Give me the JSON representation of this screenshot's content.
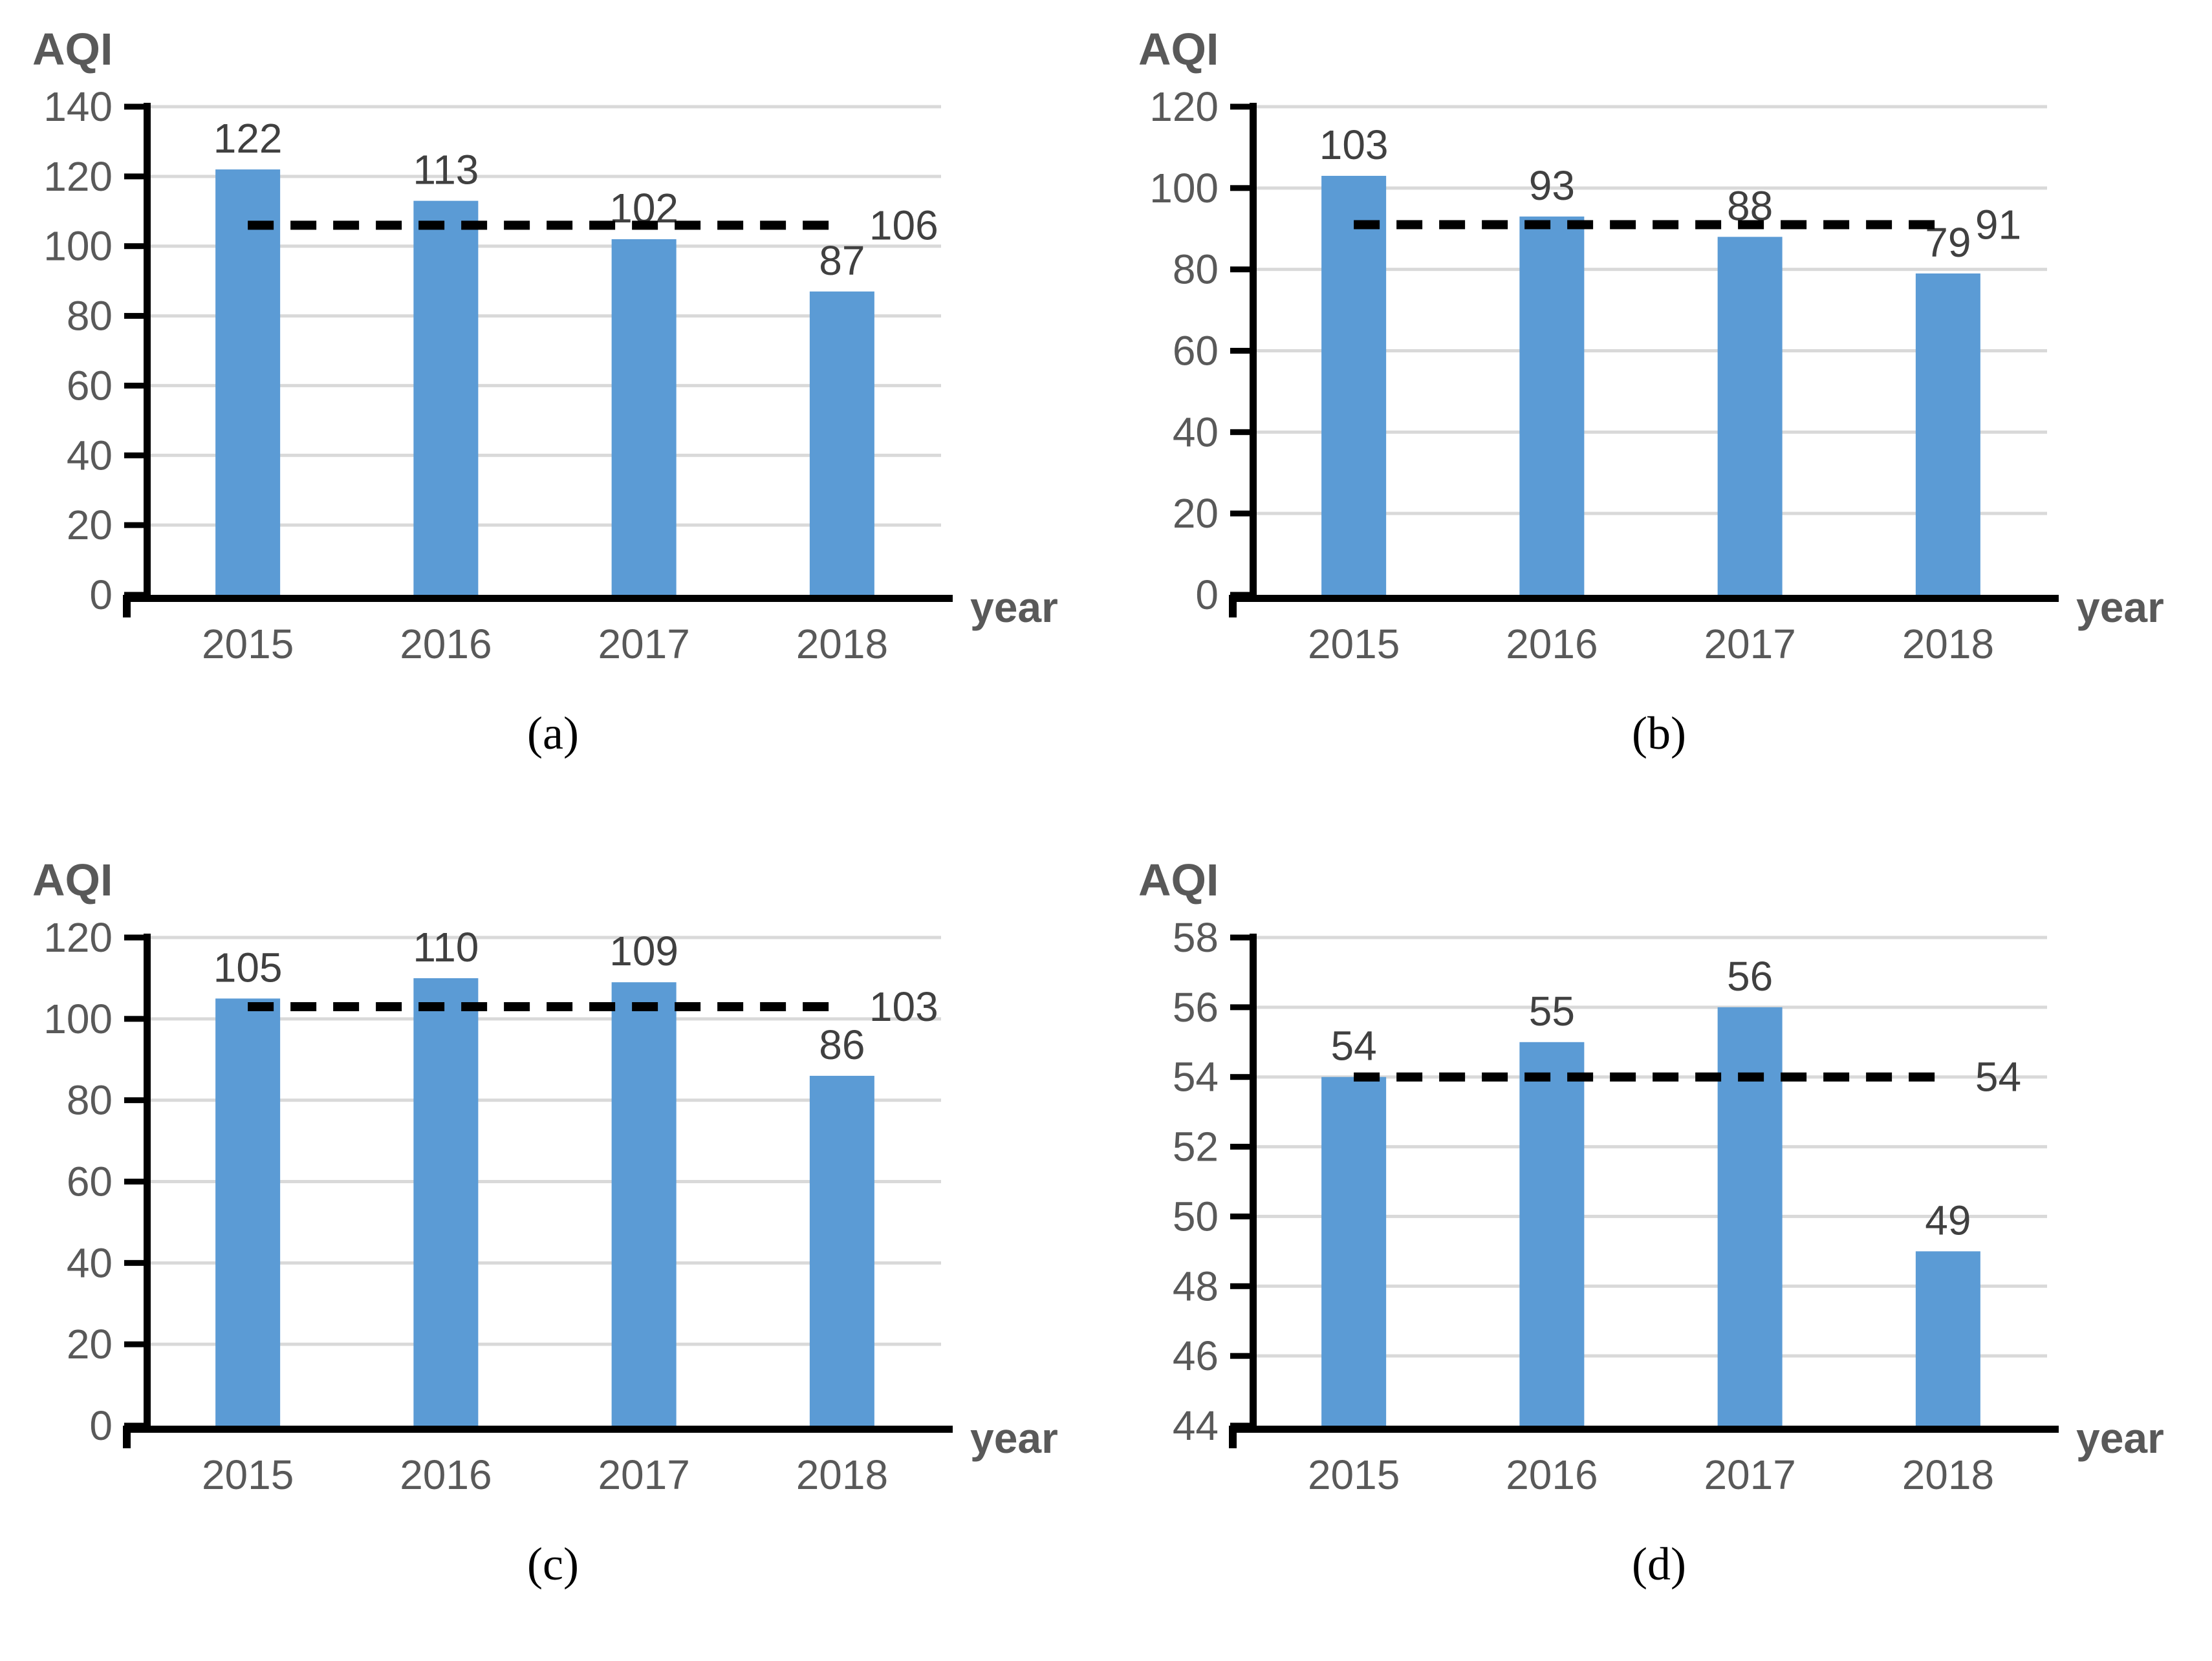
{
  "colors": {
    "bar": "#5B9BD5",
    "gridline": "#D9D9D9",
    "axis": "#000000",
    "tick_label": "#595959",
    "data_label": "#404040",
    "dashed_line": "#000000"
  },
  "chart_data": [
    {
      "type": "bar",
      "title": "AQI",
      "xlabel": "year",
      "caption": "(a)",
      "categories": [
        "2015",
        "2016",
        "2017",
        "2018"
      ],
      "values": [
        122,
        113,
        102,
        87
      ],
      "average_line": {
        "value": 106,
        "label": "106",
        "style": "dashed"
      },
      "ylim": [
        0,
        140
      ],
      "ytick_step": 20,
      "grid": true,
      "legend": "none"
    },
    {
      "type": "bar",
      "title": "AQI",
      "xlabel": "year",
      "caption": "(b)",
      "categories": [
        "2015",
        "2016",
        "2017",
        "2018"
      ],
      "values": [
        103,
        93,
        88,
        79
      ],
      "average_line": {
        "value": 91,
        "label": "91",
        "style": "dashed"
      },
      "ylim": [
        0,
        120
      ],
      "ytick_step": 20,
      "grid": true,
      "legend": "none"
    },
    {
      "type": "bar",
      "title": "AQI",
      "xlabel": "year",
      "caption": "(c)",
      "categories": [
        "2015",
        "2016",
        "2017",
        "2018"
      ],
      "values": [
        105,
        110,
        109,
        86
      ],
      "average_line": {
        "value": 103,
        "label": "103",
        "style": "dashed"
      },
      "ylim": [
        0,
        120
      ],
      "ytick_step": 20,
      "grid": true,
      "legend": "none"
    },
    {
      "type": "bar",
      "title": "AQI",
      "xlabel": "year",
      "caption": "(d)",
      "categories": [
        "2015",
        "2016",
        "2017",
        "2018"
      ],
      "values": [
        54,
        55,
        56,
        49
      ],
      "average_line": {
        "value": 54,
        "label": "54",
        "style": "dashed"
      },
      "ylim": [
        44,
        58
      ],
      "ytick_step": 2,
      "grid": true,
      "legend": "none"
    }
  ]
}
